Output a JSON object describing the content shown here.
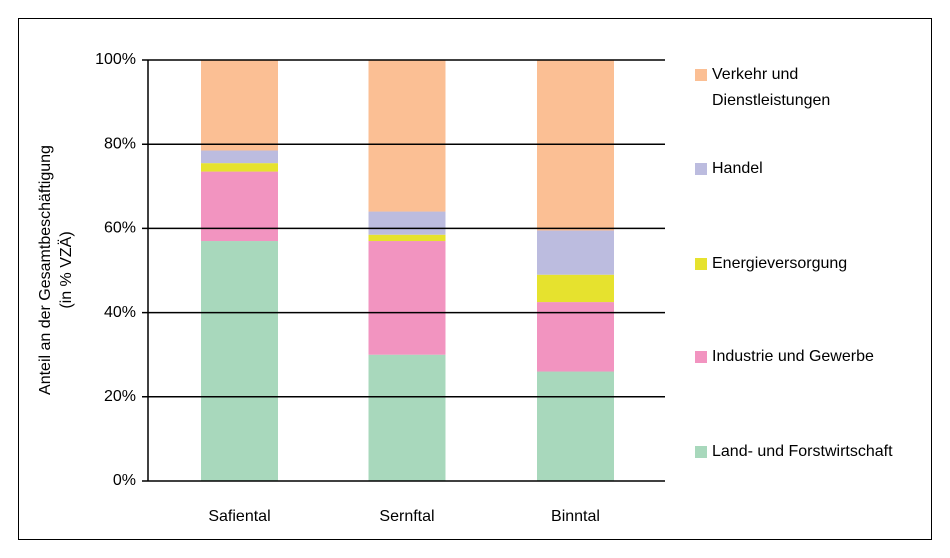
{
  "chart_data": {
    "type": "stacked_bar",
    "ylabel": [
      "Anteil an der Gesamtbeschäftigung",
      "(in % VZÄ)"
    ],
    "categories": [
      "Safiental",
      "Sernftal",
      "Binntal"
    ],
    "series": [
      {
        "name": "Land- und Forstwirtschaft",
        "color": "#a8d8bc",
        "values": [
          57,
          30,
          26
        ]
      },
      {
        "name": "Industrie und Gewerbe",
        "color": "#f294c0",
        "values": [
          16.5,
          27,
          16.5
        ]
      },
      {
        "name": "Energieversorgung",
        "color": "#e6e22e",
        "values": [
          2,
          1.5,
          6.5
        ]
      },
      {
        "name": "Handel",
        "color": "#bcbcdf",
        "values": [
          3,
          5.5,
          10.5
        ]
      },
      {
        "name": "Verkehr und Dienstleistungen",
        "color": "#fbbf94",
        "values": [
          21.5,
          36,
          40.5
        ]
      }
    ],
    "ylim": [
      0,
      100
    ],
    "yticks": [
      {
        "value": 0,
        "label": "0%"
      },
      {
        "value": 20,
        "label": "20%"
      },
      {
        "value": 40,
        "label": "40%"
      },
      {
        "value": 60,
        "label": "60%"
      },
      {
        "value": 80,
        "label": "80%"
      },
      {
        "value": 100,
        "label": "100%"
      }
    ],
    "grid": true
  }
}
